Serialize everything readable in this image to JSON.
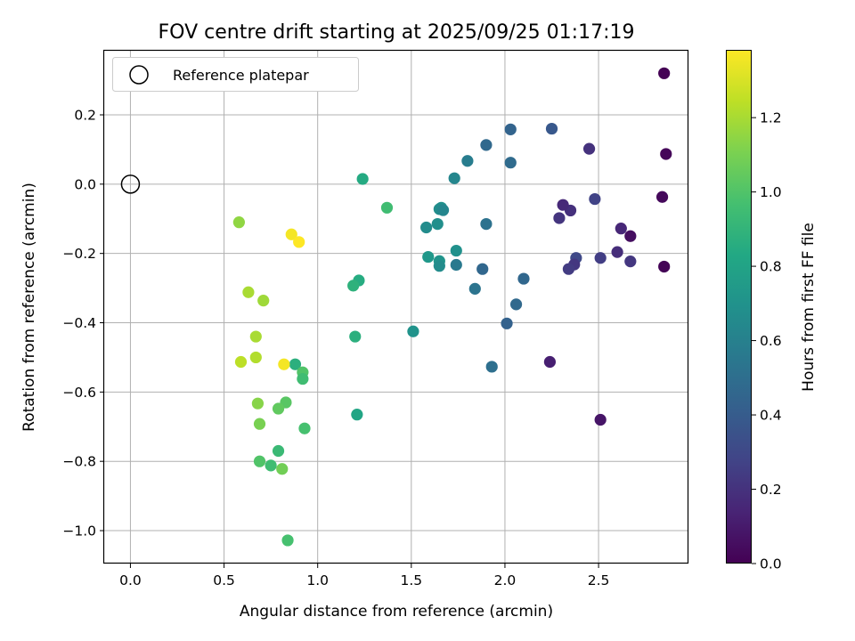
{
  "chart_data": {
    "type": "scatter",
    "title": "FOV centre drift starting at 2025/09/25 01:17:19",
    "xlabel": "Angular distance from reference (arcmin)",
    "ylabel": "Rotation from reference (arcmin)",
    "colorbar_label": "Hours from first FF file",
    "colormap": "viridis",
    "grid": true,
    "xlim": [
      -0.14,
      2.98
    ],
    "ylim": [
      -1.095,
      0.385
    ],
    "clim": [
      0.0,
      1.38
    ],
    "xticks": [
      0.0,
      0.5,
      1.0,
      1.5,
      2.0,
      2.5
    ],
    "xtick_labels": [
      "0.0",
      "0.5",
      "1.0",
      "1.5",
      "2.0",
      "2.5"
    ],
    "yticks": [
      0.2,
      0.0,
      -0.2,
      -0.4,
      -0.6,
      -0.8,
      -1.0
    ],
    "ytick_labels": [
      "0.2",
      "0.0",
      "−0.2",
      "−0.4",
      "−0.6",
      "−0.8",
      "−1.0"
    ],
    "cticks": [
      0.0,
      0.2,
      0.4,
      0.6,
      0.8,
      1.0,
      1.2
    ],
    "ctick_labels": [
      "0.0",
      "0.2",
      "0.4",
      "0.6",
      "0.8",
      "1.0",
      "1.2"
    ],
    "legend": {
      "label": "Reference platepar",
      "location": "upper-left"
    },
    "reference_point": {
      "x": 0.0,
      "y": 0.0
    },
    "points": [
      {
        "x": 2.85,
        "y": 0.32,
        "c": 0.0
      },
      {
        "x": 2.86,
        "y": 0.087,
        "c": 0.02
      },
      {
        "x": 2.84,
        "y": -0.037,
        "c": 0.03
      },
      {
        "x": 2.85,
        "y": -0.238,
        "c": 0.01
      },
      {
        "x": 2.67,
        "y": -0.15,
        "c": 0.05
      },
      {
        "x": 2.51,
        "y": -0.68,
        "c": 0.08
      },
      {
        "x": 2.67,
        "y": -0.223,
        "c": 0.22
      },
      {
        "x": 2.62,
        "y": -0.128,
        "c": 0.15
      },
      {
        "x": 2.6,
        "y": -0.196,
        "c": 0.18
      },
      {
        "x": 2.51,
        "y": -0.213,
        "c": 0.25
      },
      {
        "x": 2.48,
        "y": -0.043,
        "c": 0.27
      },
      {
        "x": 2.45,
        "y": 0.102,
        "c": 0.2
      },
      {
        "x": 2.38,
        "y": -0.213,
        "c": 0.3
      },
      {
        "x": 2.37,
        "y": -0.232,
        "c": 0.22
      },
      {
        "x": 2.34,
        "y": -0.245,
        "c": 0.24
      },
      {
        "x": 2.35,
        "y": -0.076,
        "c": 0.19
      },
      {
        "x": 2.31,
        "y": -0.06,
        "c": 0.16
      },
      {
        "x": 2.29,
        "y": -0.098,
        "c": 0.21
      },
      {
        "x": 2.24,
        "y": -0.513,
        "c": 0.12
      },
      {
        "x": 2.25,
        "y": 0.16,
        "c": 0.38
      },
      {
        "x": 2.03,
        "y": 0.158,
        "c": 0.44
      },
      {
        "x": 2.03,
        "y": 0.062,
        "c": 0.48
      },
      {
        "x": 2.1,
        "y": -0.273,
        "c": 0.46
      },
      {
        "x": 2.06,
        "y": -0.347,
        "c": 0.47
      },
      {
        "x": 2.01,
        "y": -0.402,
        "c": 0.43
      },
      {
        "x": 1.93,
        "y": -0.527,
        "c": 0.5
      },
      {
        "x": 1.9,
        "y": 0.113,
        "c": 0.47
      },
      {
        "x": 1.9,
        "y": -0.115,
        "c": 0.52
      },
      {
        "x": 1.88,
        "y": -0.245,
        "c": 0.46
      },
      {
        "x": 1.84,
        "y": -0.302,
        "c": 0.53
      },
      {
        "x": 1.8,
        "y": 0.067,
        "c": 0.58
      },
      {
        "x": 1.73,
        "y": 0.017,
        "c": 0.63
      },
      {
        "x": 1.74,
        "y": -0.192,
        "c": 0.69
      },
      {
        "x": 1.74,
        "y": -0.233,
        "c": 0.56
      },
      {
        "x": 1.66,
        "y": -0.068,
        "c": 0.69
      },
      {
        "x": 1.65,
        "y": -0.072,
        "c": 0.67
      },
      {
        "x": 1.67,
        "y": -0.075,
        "c": 0.63
      },
      {
        "x": 1.64,
        "y": -0.115,
        "c": 0.68
      },
      {
        "x": 1.58,
        "y": -0.125,
        "c": 0.66
      },
      {
        "x": 1.65,
        "y": -0.222,
        "c": 0.71
      },
      {
        "x": 1.65,
        "y": -0.236,
        "c": 0.66
      },
      {
        "x": 1.59,
        "y": -0.21,
        "c": 0.73
      },
      {
        "x": 1.51,
        "y": -0.425,
        "c": 0.7
      },
      {
        "x": 1.24,
        "y": 0.015,
        "c": 0.84
      },
      {
        "x": 1.37,
        "y": -0.068,
        "c": 0.95
      },
      {
        "x": 1.22,
        "y": -0.278,
        "c": 0.85
      },
      {
        "x": 1.19,
        "y": -0.293,
        "c": 0.88
      },
      {
        "x": 1.2,
        "y": -0.44,
        "c": 0.87
      },
      {
        "x": 1.21,
        "y": -0.665,
        "c": 0.81
      },
      {
        "x": 0.88,
        "y": -0.52,
        "c": 0.87
      },
      {
        "x": 0.92,
        "y": -0.543,
        "c": 1.0
      },
      {
        "x": 0.92,
        "y": -0.562,
        "c": 0.95
      },
      {
        "x": 0.93,
        "y": -0.705,
        "c": 0.97
      },
      {
        "x": 0.83,
        "y": -0.63,
        "c": 1.02
      },
      {
        "x": 0.79,
        "y": -0.648,
        "c": 1.04
      },
      {
        "x": 0.79,
        "y": -0.77,
        "c": 0.93
      },
      {
        "x": 0.75,
        "y": -0.812,
        "c": 0.95
      },
      {
        "x": 0.69,
        "y": -0.8,
        "c": 1.0
      },
      {
        "x": 0.81,
        "y": -0.822,
        "c": 1.08
      },
      {
        "x": 0.84,
        "y": -1.028,
        "c": 0.97
      },
      {
        "x": 0.68,
        "y": -0.633,
        "c": 1.13
      },
      {
        "x": 0.69,
        "y": -0.692,
        "c": 1.1
      },
      {
        "x": 0.67,
        "y": -0.44,
        "c": 1.2
      },
      {
        "x": 0.67,
        "y": -0.5,
        "c": 1.22
      },
      {
        "x": 0.59,
        "y": -0.513,
        "c": 1.24
      },
      {
        "x": 0.63,
        "y": -0.312,
        "c": 1.2
      },
      {
        "x": 0.71,
        "y": -0.336,
        "c": 1.18
      },
      {
        "x": 0.58,
        "y": -0.11,
        "c": 1.15
      },
      {
        "x": 0.86,
        "y": -0.145,
        "c": 1.36
      },
      {
        "x": 0.9,
        "y": -0.167,
        "c": 1.38
      },
      {
        "x": 0.82,
        "y": -0.52,
        "c": 1.36
      }
    ]
  }
}
